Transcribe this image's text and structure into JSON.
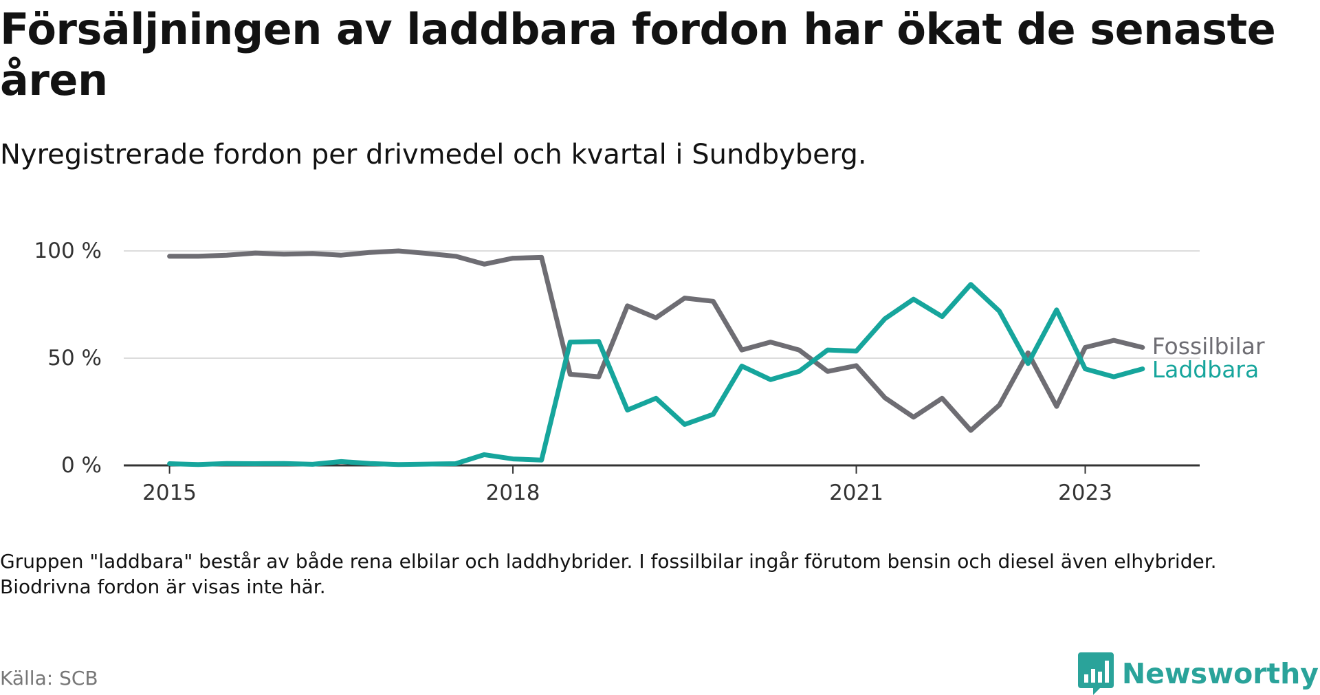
{
  "title": "Försäljningen av laddbara fordon har ökat de senaste åren",
  "subtitle": "Nyregistrerade fordon per drivmedel och kvartal i Sundbyberg.",
  "note": "Gruppen \"laddbara\" består av både rena elbilar och laddhybrider. I fossilbilar ingår förutom bensin och diesel även elhybrider. Biodrivna fordon är visas inte här.",
  "source": "Källa: SCB",
  "brand": {
    "name": "Newsworthy",
    "logo_icon": "chart-bubble-icon",
    "color": "#2aa39a"
  },
  "chart_data": {
    "type": "line",
    "title": "Försäljningen av laddbara fordon har ökat de senaste åren",
    "subtitle": "Nyregistrerade fordon per drivmedel och kvartal i Sundbyberg.",
    "xlabel": "",
    "ylabel": "",
    "x": [
      2015.0,
      2015.25,
      2015.5,
      2015.75,
      2016.0,
      2016.25,
      2016.5,
      2016.75,
      2017.0,
      2017.25,
      2017.5,
      2017.75,
      2018.0,
      2018.25,
      2018.5,
      2018.75,
      2019.0,
      2019.25,
      2019.5,
      2019.75,
      2020.0,
      2020.25,
      2020.5,
      2020.75,
      2021.0,
      2021.25,
      2021.5,
      2021.75,
      2022.0,
      2022.25,
      2022.5,
      2022.75,
      2023.0,
      2023.25,
      2023.5
    ],
    "xlim": [
      2014.6,
      2024.0
    ],
    "x_ticks": [
      2015,
      2018,
      2021,
      2023
    ],
    "x_tick_labels": [
      "2015",
      "2018",
      "2021",
      "2023"
    ],
    "ylim": [
      0,
      100
    ],
    "y_ticks": [
      0,
      50,
      100
    ],
    "y_tick_labels": [
      "0 %",
      "50 %",
      "100 %"
    ],
    "grid": true,
    "legend": "inline-right",
    "series": [
      {
        "name": "Fossilbilar",
        "color": "#6e6d73",
        "values": [
          97.5,
          97.5,
          98.0,
          99.0,
          98.5,
          98.8,
          98.0,
          99.3,
          100.0,
          98.8,
          97.5,
          93.8,
          96.6,
          97.0,
          42.5,
          41.3,
          74.4,
          68.8,
          78.0,
          76.5,
          53.8,
          57.5,
          53.8,
          43.8,
          46.5,
          31.5,
          22.5,
          31.3,
          16.3,
          28.1,
          52.5,
          27.5,
          55.0,
          58.3,
          55.0
        ]
      },
      {
        "name": "Laddbara",
        "color": "#16a59c",
        "values": [
          0.8,
          0.4,
          0.9,
          0.8,
          0.9,
          0.5,
          1.8,
          0.9,
          0.4,
          0.6,
          0.8,
          5.0,
          3.0,
          2.5,
          57.5,
          57.8,
          25.8,
          31.3,
          19.1,
          23.8,
          46.3,
          40.0,
          43.8,
          53.8,
          53.3,
          68.4,
          77.5,
          69.4,
          84.4,
          71.9,
          47.5,
          72.5,
          45.0,
          41.3,
          45.0
        ]
      }
    ]
  }
}
